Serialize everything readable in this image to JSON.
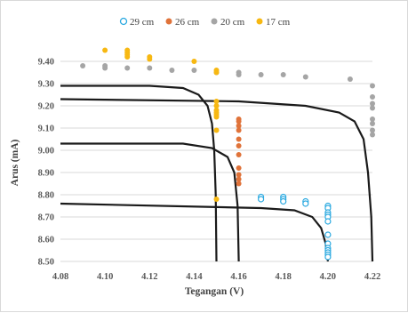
{
  "chart_data": {
    "type": "scatter",
    "xlabel": "Tegangan (V)",
    "ylabel": "Arus (mA)",
    "xlim": [
      4.08,
      4.22
    ],
    "ylim": [
      8.5,
      9.4
    ],
    "xticks": [
      "4.08",
      "4.10",
      "4.12",
      "4.14",
      "4.16",
      "4.18",
      "4.20",
      "4.22"
    ],
    "yticks": [
      "8.50",
      "8.60",
      "8.70",
      "8.80",
      "8.90",
      "9.00",
      "9.10",
      "9.20",
      "9.30",
      "9.40"
    ],
    "grid": "horizontal",
    "legend_position": "top",
    "series": [
      {
        "name": "29 cm",
        "marker": "open-circle",
        "color": "#2aa9e0",
        "points": [
          [
            4.17,
            8.79
          ],
          [
            4.17,
            8.78
          ],
          [
            4.18,
            8.79
          ],
          [
            4.18,
            8.78
          ],
          [
            4.18,
            8.77
          ],
          [
            4.19,
            8.77
          ],
          [
            4.19,
            8.76
          ],
          [
            4.2,
            8.75
          ],
          [
            4.2,
            8.74
          ],
          [
            4.2,
            8.72
          ],
          [
            4.2,
            8.71
          ],
          [
            4.2,
            8.7
          ],
          [
            4.2,
            8.68
          ],
          [
            4.2,
            8.62
          ],
          [
            4.2,
            8.58
          ],
          [
            4.2,
            8.56
          ],
          [
            4.2,
            8.55
          ],
          [
            4.2,
            8.54
          ],
          [
            4.2,
            8.53
          ],
          [
            4.2,
            8.52
          ]
        ]
      },
      {
        "name": "26 cm",
        "marker": "filled-circle",
        "color": "#e0733a",
        "points": [
          [
            4.16,
            9.14
          ],
          [
            4.16,
            9.13
          ],
          [
            4.16,
            9.11
          ],
          [
            4.16,
            9.09
          ],
          [
            4.16,
            9.05
          ],
          [
            4.16,
            9.02
          ],
          [
            4.16,
            8.98
          ],
          [
            4.16,
            8.92
          ],
          [
            4.16,
            8.89
          ],
          [
            4.16,
            8.87
          ],
          [
            4.16,
            8.85
          ]
        ]
      },
      {
        "name": "20 cm",
        "marker": "filled-circle",
        "color": "#a5a5a5",
        "points": [
          [
            4.09,
            9.38
          ],
          [
            4.1,
            9.38
          ],
          [
            4.1,
            9.37
          ],
          [
            4.11,
            9.37
          ],
          [
            4.12,
            9.37
          ],
          [
            4.13,
            9.36
          ],
          [
            4.14,
            9.36
          ],
          [
            4.15,
            9.35
          ],
          [
            4.16,
            9.35
          ],
          [
            4.16,
            9.34
          ],
          [
            4.17,
            9.34
          ],
          [
            4.18,
            9.34
          ],
          [
            4.19,
            9.33
          ],
          [
            4.21,
            9.32
          ],
          [
            4.22,
            9.29
          ],
          [
            4.22,
            9.24
          ],
          [
            4.22,
            9.21
          ],
          [
            4.22,
            9.19
          ],
          [
            4.22,
            9.14
          ],
          [
            4.22,
            9.12
          ],
          [
            4.22,
            9.09
          ],
          [
            4.22,
            9.07
          ]
        ]
      },
      {
        "name": "17 cm",
        "marker": "filled-circle",
        "color": "#f7b812",
        "points": [
          [
            4.1,
            9.45
          ],
          [
            4.11,
            9.45
          ],
          [
            4.11,
            9.44
          ],
          [
            4.11,
            9.43
          ],
          [
            4.11,
            9.42
          ],
          [
            4.12,
            9.42
          ],
          [
            4.12,
            9.41
          ],
          [
            4.14,
            9.4
          ],
          [
            4.15,
            9.36
          ],
          [
            4.15,
            9.35
          ],
          [
            4.15,
            9.22
          ],
          [
            4.15,
            9.2
          ],
          [
            4.15,
            9.18
          ],
          [
            4.15,
            9.17
          ],
          [
            4.15,
            9.16
          ],
          [
            4.15,
            9.15
          ],
          [
            4.15,
            9.09
          ],
          [
            4.15,
            8.78
          ]
        ]
      }
    ],
    "curves": [
      {
        "color": "#1a1a1a",
        "points": [
          [
            4.08,
            9.29
          ],
          [
            4.12,
            9.29
          ],
          [
            4.135,
            9.28
          ],
          [
            4.142,
            9.25
          ],
          [
            4.146,
            9.2
          ],
          [
            4.148,
            9.12
          ],
          [
            4.149,
            9.0
          ],
          [
            4.1497,
            8.8
          ],
          [
            4.15,
            8.5
          ]
        ]
      },
      {
        "color": "#1a1a1a",
        "points": [
          [
            4.08,
            9.23
          ],
          [
            4.16,
            9.22
          ],
          [
            4.19,
            9.2
          ],
          [
            4.205,
            9.17
          ],
          [
            4.212,
            9.13
          ],
          [
            4.216,
            9.05
          ],
          [
            4.218,
            8.9
          ],
          [
            4.2195,
            8.7
          ],
          [
            4.22,
            8.5
          ]
        ]
      },
      {
        "color": "#1a1a1a",
        "points": [
          [
            4.08,
            9.03
          ],
          [
            4.135,
            9.03
          ],
          [
            4.148,
            9.01
          ],
          [
            4.155,
            8.97
          ],
          [
            4.158,
            8.9
          ],
          [
            4.1595,
            8.75
          ],
          [
            4.16,
            8.5
          ]
        ]
      },
      {
        "color": "#1a1a1a",
        "points": [
          [
            4.08,
            8.76
          ],
          [
            4.17,
            8.74
          ],
          [
            4.185,
            8.73
          ],
          [
            4.193,
            8.7
          ],
          [
            4.197,
            8.65
          ],
          [
            4.199,
            8.58
          ],
          [
            4.2,
            8.5
          ]
        ]
      }
    ]
  }
}
